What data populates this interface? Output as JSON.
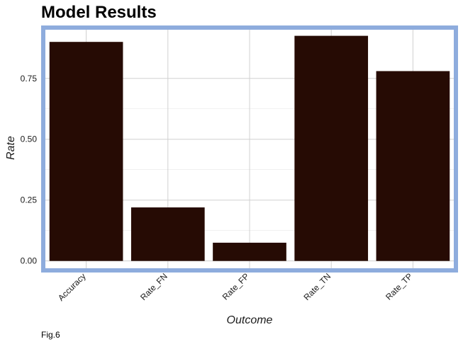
{
  "chart_data": {
    "type": "bar",
    "title": "Model Results",
    "caption": "Fig.6",
    "xlabel": "Outcome",
    "ylabel": "Rate",
    "categories": [
      "Accuracy",
      "Rate_FN",
      "Rate_FP",
      "Rate_TN",
      "Rate_TP"
    ],
    "values": [
      0.9,
      0.22,
      0.075,
      0.925,
      0.78
    ],
    "yticks": [
      0.0,
      0.25,
      0.5,
      0.75
    ],
    "ytick_labels": [
      "0.00",
      "0.25",
      "0.50",
      "0.75"
    ],
    "ylim": [
      -0.03,
      0.95
    ],
    "grid": true,
    "legend": "none",
    "colors": {
      "bar": "#260B04",
      "panel_border": "#8EACDD",
      "grid": "#D0D0D0"
    }
  }
}
